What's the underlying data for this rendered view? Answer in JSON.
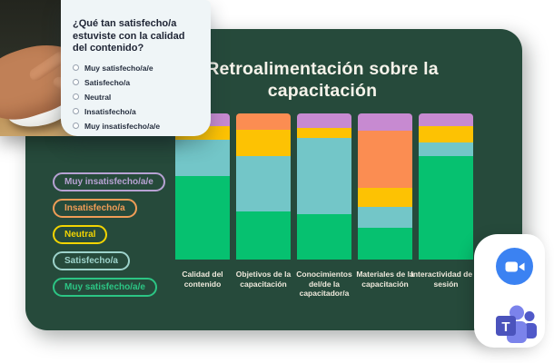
{
  "page": {
    "background": "#ffffff"
  },
  "survey_card": {
    "question": "¿Qué tan satisfecho/a estuviste con la calidad del contenido?",
    "options": [
      "Muy satisfecho/a/e",
      "Satisfecho/a",
      "Neutral",
      "Insatisfecho/a",
      "Muy insatisfecho/a/e"
    ]
  },
  "panel": {
    "title": "Retroalimentación sobre la capacitación",
    "background": "#264a3b"
  },
  "legend": {
    "items": [
      {
        "label": "Muy insatisfecho/a/e",
        "color": "#b7a2d3"
      },
      {
        "label": "Insatisfecho/a",
        "color": "#f09d57"
      },
      {
        "label": "Neutral",
        "color": "#f2d402"
      },
      {
        "label": "Satisfecho/a",
        "color": "#9dd3cb"
      },
      {
        "label": "Muy satisfecho/a/e",
        "color": "#2cc584"
      }
    ]
  },
  "chart_data": {
    "type": "bar",
    "stacked": true,
    "unit": "percent",
    "title": "Retroalimentación sobre la capacitación",
    "categories": [
      "Calidad del contenido",
      "Objetivos de la capacitación",
      "Conocimientos del/de la capacitador/a",
      "Materiales de la capacitación",
      "Interactividad de la sesión"
    ],
    "series_order": "top-to-bottom",
    "series": [
      {
        "name": "Muy insatisfecho/a/e",
        "color": "#c78ad1",
        "values": [
          9,
          0,
          10,
          12,
          9
        ]
      },
      {
        "name": "Insatisfecho/a",
        "color": "#fb8d52",
        "values": [
          0,
          11,
          0,
          39,
          0
        ]
      },
      {
        "name": "Neutral",
        "color": "#fdc203",
        "values": [
          9,
          18,
          7,
          13,
          11
        ]
      },
      {
        "name": "Satisfecho/a",
        "color": "#73c6c8",
        "values": [
          25,
          38,
          52,
          14,
          9
        ]
      },
      {
        "name": "Muy satisfecho/a/e",
        "color": "#06c170",
        "values": [
          57,
          33,
          31,
          22,
          71
        ]
      }
    ],
    "ylim": [
      0,
      100
    ],
    "legend_position": "left",
    "grid": false
  },
  "app_icons": {
    "zoom": {
      "name": "Zoom",
      "color": "#3b82f2"
    },
    "teams": {
      "name": "Microsoft Teams",
      "letter": "T",
      "color_square": "#4b53bc",
      "color_light": "#7b83eb",
      "color_dark": "#5059c9"
    }
  },
  "photo": {
    "alt": "Hand with pen and computer mouse on desk"
  }
}
